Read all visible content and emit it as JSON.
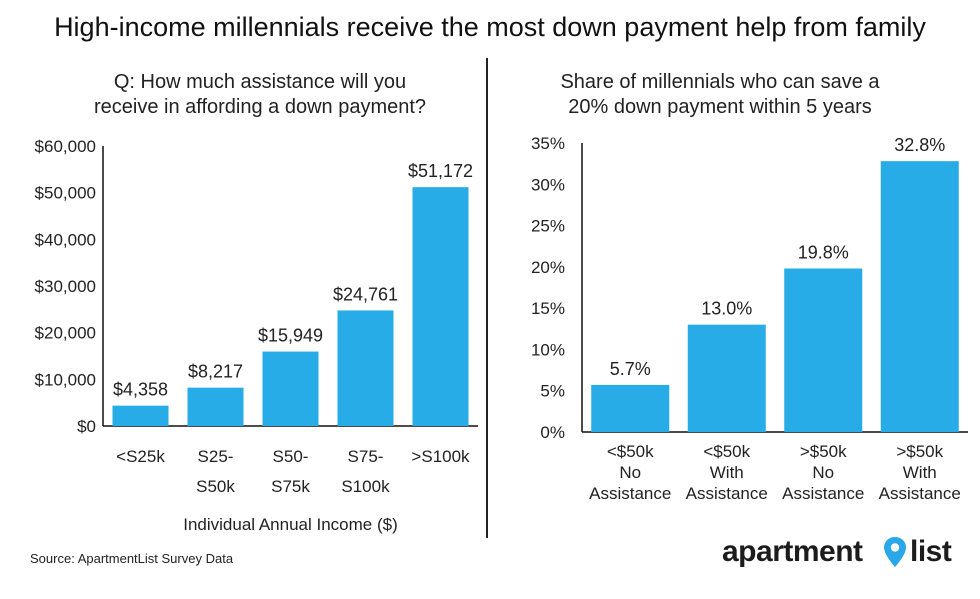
{
  "title": "High-income millennials receive the most down payment help from family",
  "source": "Source: ApartmentList Survey Data",
  "logo": {
    "text_a": "apartment",
    "text_b": "list",
    "pin_color": "#2aa7e8"
  },
  "colors": {
    "bar": "#27ace8",
    "axis": "#111111"
  },
  "chart_data": [
    {
      "type": "bar",
      "subtitle_lines": [
        "Q: How much assistance will you",
        "receive in affording a down payment?"
      ],
      "xlabel": "Individual Annual Income ($)",
      "ylabel": "",
      "ylim": [
        0,
        60000
      ],
      "y_ticks": [
        0,
        10000,
        20000,
        30000,
        40000,
        50000,
        60000
      ],
      "y_tick_labels": [
        "$0",
        "$10,000",
        "$20,000",
        "$30,000",
        "$40,000",
        "$50,000",
        "$60,000"
      ],
      "categories": [
        [
          "<S25k"
        ],
        [
          "S25-",
          "S50k"
        ],
        [
          "S50-",
          "S75k"
        ],
        [
          "S75-",
          "S100k"
        ],
        [
          ">S100k"
        ]
      ],
      "values": [
        4358,
        8217,
        15949,
        24761,
        51172
      ],
      "value_labels": [
        "$4,358",
        "$8,217",
        "$15,949",
        "$24,761",
        "$51,172"
      ],
      "grid": false,
      "legend": "none"
    },
    {
      "type": "bar",
      "subtitle_lines": [
        "Share of millennials who can save a",
        "20% down payment within 5 years"
      ],
      "xlabel": "",
      "ylabel": "",
      "ylim": [
        0,
        35
      ],
      "y_ticks": [
        0,
        5,
        10,
        15,
        20,
        25,
        30,
        35
      ],
      "y_tick_labels": [
        "0%",
        "5%",
        "10%",
        "15%",
        "20%",
        "25%",
        "30%",
        "35%"
      ],
      "categories": [
        [
          "<$50k",
          "No",
          "Assistance"
        ],
        [
          "<$50k",
          "With",
          "Assistance"
        ],
        [
          ">$50k",
          "No",
          "Assistance"
        ],
        [
          ">$50k",
          "With",
          "Assistance"
        ]
      ],
      "values": [
        5.7,
        13.0,
        19.8,
        32.8
      ],
      "value_labels": [
        "5.7%",
        "13.0%",
        "19.8%",
        "32.8%"
      ],
      "grid": false,
      "legend": "none"
    }
  ]
}
